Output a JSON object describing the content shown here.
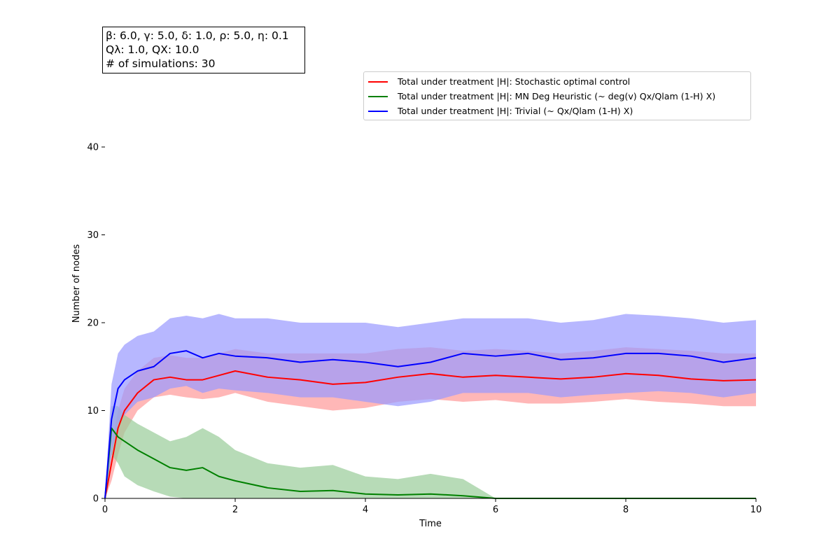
{
  "params": {
    "line1": "β: 6.0, γ: 5.0, δ: 1.0, ρ: 5.0, η: 0.1",
    "line2": "Qλ: 1.0, QX: 10.0",
    "line3": "# of simulations: 30"
  },
  "chart_data": {
    "type": "line",
    "title": "",
    "xlabel": "Time",
    "ylabel": "Number of nodes",
    "xlim": [
      0,
      10
    ],
    "ylim": [
      0,
      40
    ],
    "xticks": [
      0,
      2,
      4,
      6,
      8,
      10
    ],
    "yticks": [
      0,
      10,
      20,
      30,
      40
    ],
    "grid": false,
    "legend_position": "upper-right",
    "x": [
      0,
      0.1,
      0.2,
      0.3,
      0.5,
      0.75,
      1,
      1.25,
      1.5,
      1.75,
      2,
      2.5,
      3,
      3.5,
      4,
      4.5,
      5,
      5.5,
      6,
      6.5,
      7,
      7.5,
      8,
      8.5,
      9,
      9.5,
      10
    ],
    "series": [
      {
        "name": "Total under treatment |H|: Stochastic optimal control",
        "color": "#ff0000",
        "band_color": "#ff9999",
        "values": [
          0,
          4,
          8,
          10,
          12,
          13.5,
          13.8,
          13.5,
          13.5,
          14,
          14.5,
          13.8,
          13.5,
          13,
          13.2,
          13.8,
          14.2,
          13.8,
          14,
          13.8,
          13.6,
          13.8,
          14.2,
          14,
          13.6,
          13.4,
          13.5
        ],
        "lower": [
          0,
          2,
          5,
          7.5,
          10,
          11.5,
          11.8,
          11.5,
          11.3,
          11.5,
          12,
          11,
          10.5,
          10,
          10.3,
          11,
          11.3,
          11,
          11.2,
          10.8,
          10.8,
          11,
          11.3,
          11,
          10.8,
          10.5,
          10.5
        ],
        "upper": [
          0,
          6,
          10,
          12.5,
          14.5,
          16,
          16.3,
          16,
          16,
          16.5,
          17,
          16.5,
          16.5,
          16.5,
          16.5,
          17,
          17.2,
          16.8,
          17,
          16.8,
          16.5,
          16.8,
          17.2,
          17,
          16.8,
          16.5,
          16.5
        ]
      },
      {
        "name": "Total under treatment |H|: MN Deg Heuristic (~ deg(v) Qx/Qlam (1-H) X)",
        "color": "#008000",
        "band_color": "#99cc99",
        "values": [
          0,
          8,
          7,
          6.5,
          5.5,
          4.5,
          3.5,
          3.2,
          3.5,
          2.5,
          2,
          1.2,
          0.8,
          0.9,
          0.5,
          0.4,
          0.5,
          0.3,
          0,
          0,
          0,
          0,
          0,
          0,
          0,
          0,
          0
        ],
        "lower": [
          0,
          5,
          4,
          2.5,
          1.5,
          0.8,
          0.2,
          0,
          0,
          0,
          0,
          0,
          0,
          0,
          0,
          0,
          0,
          0,
          0,
          0,
          0,
          0,
          0,
          0,
          0,
          0,
          0
        ],
        "upper": [
          0,
          10.5,
          10.5,
          9.5,
          8.5,
          7.5,
          6.5,
          7,
          8,
          7,
          5.5,
          4,
          3.5,
          3.8,
          2.5,
          2.2,
          2.8,
          2.2,
          0,
          0,
          0,
          0,
          0,
          0,
          0,
          0,
          0
        ]
      },
      {
        "name": "Total under treatment |H|: Trivial (~ Qx/Qlam (1-H) X)",
        "color": "#0000ff",
        "band_color": "#9999ff",
        "values": [
          0,
          9,
          12.5,
          13.5,
          14.5,
          15,
          16.5,
          16.8,
          16,
          16.5,
          16.2,
          16,
          15.5,
          15.8,
          15.5,
          15,
          15.5,
          16.5,
          16.2,
          16.5,
          15.8,
          16,
          16.5,
          16.5,
          16.2,
          15.5,
          16
        ],
        "lower": [
          0,
          5,
          8.5,
          9.5,
          11,
          11.5,
          12.5,
          12.8,
          12,
          12.5,
          12.3,
          12,
          11.5,
          11.5,
          11,
          10.5,
          11,
          12,
          12,
          12,
          11.5,
          11.8,
          12,
          12.2,
          12,
          11.5,
          12
        ],
        "upper": [
          0,
          13,
          16.5,
          17.5,
          18.5,
          19,
          20.5,
          20.8,
          20.5,
          21,
          20.5,
          20.5,
          20,
          20,
          20,
          19.5,
          20,
          20.5,
          20.5,
          20.5,
          20,
          20.3,
          21,
          20.8,
          20.5,
          20,
          20.3
        ]
      }
    ]
  }
}
